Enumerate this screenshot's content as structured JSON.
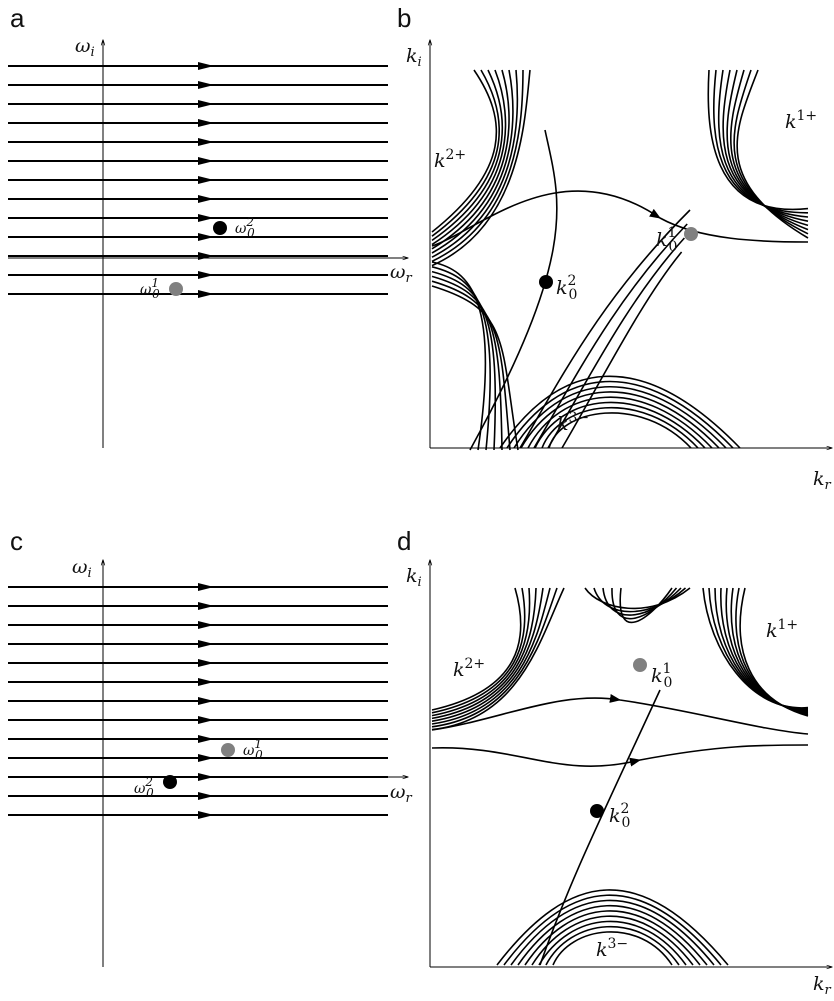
{
  "panels": {
    "a": {
      "letter": "a",
      "y_axis_label": "ω",
      "y_axis_sub": "i",
      "x_axis_label": "ω",
      "x_axis_sub": "r",
      "points": [
        {
          "label": "ω",
          "sub": "0",
          "sup": "2",
          "color": "#000000"
        },
        {
          "label": "ω",
          "sub": "0",
          "sup": "1",
          "color": "#808080"
        }
      ]
    },
    "b": {
      "letter": "b",
      "y_axis_label": "k",
      "y_axis_sub": "i",
      "x_axis_label": "k",
      "x_axis_sub": "r",
      "points": [
        {
          "label": "k",
          "sub": "0",
          "sup": "1",
          "color": "#808080"
        },
        {
          "label": "k",
          "sub": "0",
          "sup": "2",
          "color": "#000000"
        }
      ],
      "branch_labels": [
        {
          "label": "k",
          "sup": "2+"
        },
        {
          "label": "k",
          "sup": "1+"
        },
        {
          "label": "k",
          "sup": "3−"
        }
      ]
    },
    "c": {
      "letter": "c",
      "y_axis_label": "ω",
      "y_axis_sub": "i",
      "x_axis_label": "ω",
      "x_axis_sub": "r",
      "points": [
        {
          "label": "ω",
          "sub": "0",
          "sup": "1",
          "color": "#808080"
        },
        {
          "label": "ω",
          "sub": "0",
          "sup": "2",
          "color": "#000000"
        }
      ]
    },
    "d": {
      "letter": "d",
      "y_axis_label": "k",
      "y_axis_sub": "i",
      "x_axis_label": "k",
      "x_axis_sub": "r",
      "points": [
        {
          "label": "k",
          "sub": "0",
          "sup": "1",
          "color": "#808080"
        },
        {
          "label": "k",
          "sub": "0",
          "sup": "2",
          "color": "#000000"
        }
      ],
      "branch_labels": [
        {
          "label": "k",
          "sup": "2+"
        },
        {
          "label": "k",
          "sup": "1+"
        },
        {
          "label": "k",
          "sup": "3−"
        }
      ]
    }
  },
  "colors": {
    "line": "#000000",
    "point_gray": "#808080",
    "point_black": "#000000"
  }
}
